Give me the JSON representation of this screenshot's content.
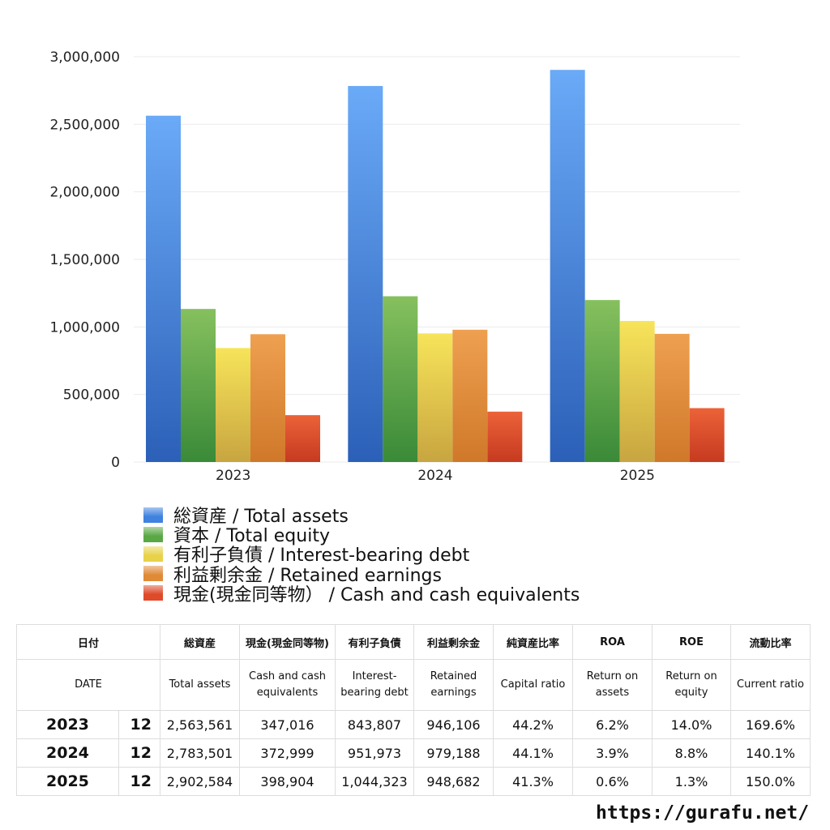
{
  "chart_data": {
    "type": "bar",
    "categories": [
      "2023",
      "2024",
      "2025"
    ],
    "ylim": [
      0,
      3000000
    ],
    "yticks": [
      "0",
      "500,000",
      "1,000,000",
      "1,500,000",
      "2,000,000",
      "2,500,000",
      "3,000,000"
    ],
    "grid": true,
    "legend_position": "bottom",
    "series": [
      {
        "name": "総資産 / Total assets",
        "values": [
          2563561,
          2783501,
          2902584
        ],
        "color": "#3f82e0"
      },
      {
        "name": "資本 / Total equity",
        "values": [
          1133000,
          1227000,
          1199000
        ],
        "color": "#5aa845"
      },
      {
        "name": "有利子負債 / Interest-bearing debt",
        "values": [
          843807,
          951973,
          1044323
        ],
        "color": "#e8d24a"
      },
      {
        "name": "利益剰余金 / Retained earnings",
        "values": [
          946106,
          979188,
          948682
        ],
        "color": "#e08a38"
      },
      {
        "name": "現金(現金同等物）  /  Cash and cash equivalents",
        "values": [
          347016,
          372999,
          398904
        ],
        "color": "#de4a2a"
      }
    ]
  },
  "table": {
    "header_jp": [
      "日付",
      "総資産",
      "現金(現金同等物)",
      "有利子負債",
      "利益剰余金",
      "純資産比率",
      "ROA",
      "ROE",
      "流動比率"
    ],
    "header_en": [
      "DATE",
      "Total assets",
      "Cash and cash equivalents",
      "Interest-bearing debt",
      "Retained earnings",
      "Capital ratio",
      "Return on assets",
      "Return on equity",
      "Current ratio"
    ],
    "rows": [
      [
        "2023",
        "12",
        "2,563,561",
        "347,016",
        "843,807",
        "946,106",
        "44.2%",
        "6.2%",
        "14.0%",
        "169.6%"
      ],
      [
        "2024",
        "12",
        "2,783,501",
        "372,999",
        "951,973",
        "979,188",
        "44.1%",
        "3.9%",
        "8.8%",
        "140.1%"
      ],
      [
        "2025",
        "12",
        "2,902,584",
        "398,904",
        "1,044,323",
        "948,682",
        "41.3%",
        "0.6%",
        "1.3%",
        "150.0%"
      ]
    ]
  },
  "footer": {
    "url": "https://gurafu.net/"
  }
}
